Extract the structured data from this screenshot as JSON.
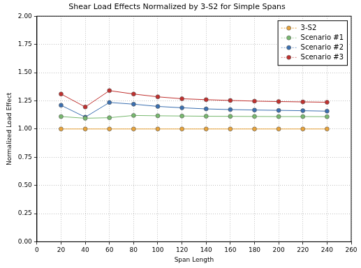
{
  "chart_data": {
    "type": "line",
    "title": "Shear Load Effects Normalized by 3-S2 for Simple Spans",
    "x_label": "Span Length",
    "y_label": "Normalized Load Effect",
    "x": [
      20,
      40,
      60,
      80,
      100,
      120,
      140,
      160,
      180,
      200,
      220,
      240
    ],
    "series": [
      {
        "name": "3-S2",
        "color": "#e8a33a",
        "values": [
          1.0,
          1.0,
          1.0,
          1.0,
          1.0,
          1.0,
          1.0,
          1.0,
          1.0,
          1.0,
          1.0,
          1.0
        ]
      },
      {
        "name": "Scenario #1",
        "color": "#77b86e",
        "values": [
          1.11,
          1.095,
          1.1,
          1.12,
          1.117,
          1.115,
          1.113,
          1.112,
          1.111,
          1.11,
          1.11,
          1.109
        ]
      },
      {
        "name": "Scenario #2",
        "color": "#3a6fb0",
        "values": [
          1.21,
          1.105,
          1.235,
          1.22,
          1.2,
          1.188,
          1.178,
          1.172,
          1.168,
          1.165,
          1.162,
          1.158
        ]
      },
      {
        "name": "Scenario #3",
        "color": "#c0302e",
        "values": [
          1.31,
          1.195,
          1.34,
          1.31,
          1.285,
          1.268,
          1.26,
          1.253,
          1.247,
          1.243,
          1.24,
          1.237
        ]
      }
    ],
    "xlim": [
      0,
      260
    ],
    "xticks": [
      0,
      20,
      40,
      60,
      80,
      100,
      120,
      140,
      160,
      180,
      200,
      220,
      240,
      260
    ],
    "ylim": [
      0,
      2
    ],
    "yticks": [
      {
        "value": 0,
        "label": "0.00"
      },
      {
        "value": 0.25,
        "label": "0.25"
      },
      {
        "value": 0.5,
        "label": "0.50"
      },
      {
        "value": 0.75,
        "label": "0.75"
      },
      {
        "value": 1,
        "label": "1.00"
      },
      {
        "value": 1.25,
        "label": "1.25"
      },
      {
        "value": 1.5,
        "label": "1.50"
      },
      {
        "value": 1.75,
        "label": "1.75"
      },
      {
        "value": 2,
        "label": "2.00"
      }
    ],
    "grid": true,
    "legend": "upper right",
    "marker": "circle"
  }
}
